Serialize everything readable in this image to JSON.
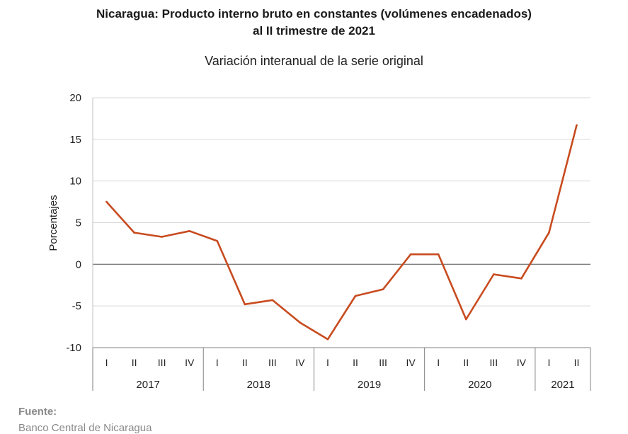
{
  "title_line1": "Nicaragua: Producto interno bruto en constantes (volúmenes encadenados)",
  "title_line2": "al II trimestre de 2021",
  "subtitle": "Variación interanual de la serie original",
  "source_label": "Fuente:",
  "source_text": "Banco Central de Nicaragua",
  "line_color": "#c84b1f",
  "chart_data": {
    "type": "line",
    "ylabel": "Porcentajes",
    "xlabel": "",
    "ylim": [
      -10,
      20
    ],
    "yticks": [
      20,
      15,
      10,
      5,
      0,
      -5,
      -10
    ],
    "grid": true,
    "quarters": [
      "I",
      "II",
      "III",
      "IV",
      "I",
      "II",
      "III",
      "IV",
      "I",
      "II",
      "III",
      "IV",
      "I",
      "II",
      "III",
      "IV",
      "I",
      "II"
    ],
    "years": [
      {
        "label": "2017",
        "count": 4
      },
      {
        "label": "2018",
        "count": 4
      },
      {
        "label": "2019",
        "count": 4
      },
      {
        "label": "2020",
        "count": 4
      },
      {
        "label": "2021",
        "count": 2
      }
    ],
    "series": [
      {
        "values": [
          7.5,
          3.8,
          3.3,
          4.0,
          2.8,
          -4.8,
          -4.3,
          -7.0,
          -9.0,
          -3.8,
          -3.0,
          1.2,
          1.2,
          -6.6,
          -1.2,
          -1.7,
          3.8,
          16.7
        ]
      }
    ]
  }
}
